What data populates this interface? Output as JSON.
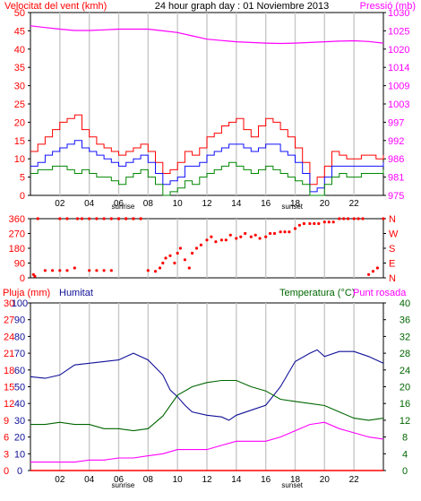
{
  "header": {
    "left": "Velocitat del vent (kmh)",
    "center": "24 hour graph day : 01 Noviembre 2013",
    "right": "Pressió (mb)"
  },
  "markers": {
    "sunrise": "sunrise",
    "sunset": "sunset"
  },
  "x_ticks": [
    "02",
    "04",
    "06",
    "08",
    "10",
    "12",
    "14",
    "16",
    "18",
    "20",
    "22"
  ],
  "colors": {
    "background": "#ffffff",
    "grid": "#c8c8c8",
    "wind_avg": "#1010ff",
    "wind_gust": "#ff0000",
    "wind_min": "#008800",
    "pressure": "#ff00ff",
    "direction": "#ff0000",
    "humidity": "#101099",
    "temperature": "#006600",
    "dewpoint": "#ff00ff",
    "rain": "#ff0000"
  },
  "chart_data": [
    {
      "type": "line",
      "title": "24 hour graph day : 01 Noviembre 2013",
      "left_axis_label": "Velocitat del vent (kmh)",
      "right_axis_label": "Pressió (mb)",
      "left_ticks": [
        "50",
        "45",
        "40",
        "35",
        "30",
        "25",
        "20",
        "15",
        "10",
        "5",
        "0"
      ],
      "right_ticks": [
        "1030",
        "1025",
        "1020",
        "1014",
        "1009",
        "1003",
        "997",
        "992",
        "986",
        "981",
        "975"
      ],
      "ylim_left": [
        0,
        50
      ],
      "ylim_right": [
        975,
        1030
      ],
      "xlim": [
        0,
        24
      ],
      "series": [
        {
          "key": "gust",
          "color_key": "wind_gust",
          "axis": "left",
          "x": [
            0,
            0.5,
            1,
            1.5,
            2,
            2.5,
            3,
            3.5,
            4,
            4.5,
            5,
            5.5,
            6,
            6.5,
            7,
            7.5,
            8,
            8.5,
            9,
            9.5,
            10,
            10.5,
            11,
            11.5,
            12,
            12.5,
            13,
            13.5,
            14,
            14.5,
            15,
            15.5,
            16,
            16.5,
            17,
            17.5,
            18,
            18.5,
            19,
            19.5,
            20,
            20.5,
            21,
            21.5,
            22,
            22.5,
            23,
            23.5,
            24
          ],
          "y": [
            12,
            14,
            16,
            18,
            20,
            21,
            22,
            18,
            16,
            14,
            13,
            12,
            11,
            12,
            13,
            14,
            12,
            9,
            6,
            7,
            9,
            12,
            11,
            13,
            16,
            17,
            19,
            20,
            21,
            18,
            16,
            19,
            21,
            20,
            18,
            16,
            13,
            9,
            3,
            5,
            8,
            12,
            11,
            10,
            10,
            11,
            11,
            10,
            11
          ]
        },
        {
          "key": "avg",
          "color_key": "wind_avg",
          "axis": "left",
          "x": [
            0,
            0.5,
            1,
            1.5,
            2,
            2.5,
            3,
            3.5,
            4,
            4.5,
            5,
            5.5,
            6,
            6.5,
            7,
            7.5,
            8,
            8.5,
            9,
            9.5,
            10,
            10.5,
            11,
            11.5,
            12,
            12.5,
            13,
            13.5,
            14,
            14.5,
            15,
            15.5,
            16,
            16.5,
            17,
            17.5,
            18,
            18.5,
            19,
            19.5,
            20,
            20.5,
            21,
            21.5,
            22,
            22.5,
            23,
            23.5,
            24
          ],
          "y": [
            8,
            9,
            11,
            12,
            13,
            14,
            15,
            13,
            12,
            11,
            10,
            9,
            8,
            9,
            10,
            11,
            9,
            6,
            3,
            4,
            5,
            8,
            8,
            9,
            11,
            12,
            13,
            14,
            14,
            13,
            12,
            13,
            14,
            14,
            12,
            11,
            9,
            6,
            1,
            2,
            5,
            8,
            8,
            8,
            8,
            8,
            8,
            8,
            9
          ]
        },
        {
          "key": "min",
          "color_key": "wind_min",
          "axis": "left",
          "x": [
            0,
            0.5,
            1,
            1.5,
            2,
            2.5,
            3,
            3.5,
            4,
            4.5,
            5,
            5.5,
            6,
            6.5,
            7,
            7.5,
            8,
            8.5,
            9,
            9.5,
            10,
            10.5,
            11,
            11.5,
            12,
            12.5,
            13,
            13.5,
            14,
            14.5,
            15,
            15.5,
            16,
            16.5,
            17,
            17.5,
            18,
            18.5,
            19,
            19.5,
            20,
            20.5,
            21,
            21.5,
            22,
            22.5,
            23,
            23.5,
            24
          ],
          "y": [
            6,
            7,
            7,
            8,
            8,
            7,
            6,
            7,
            6,
            5,
            5,
            4,
            3,
            5,
            6,
            7,
            5,
            3,
            0,
            1,
            2,
            4,
            3,
            5,
            6,
            7,
            8,
            9,
            8,
            7,
            6,
            7,
            8,
            7,
            6,
            5,
            4,
            3,
            0,
            0,
            3,
            5,
            6,
            5,
            5,
            6,
            6,
            6,
            7
          ]
        },
        {
          "key": "pressure",
          "color_key": "pressure",
          "axis": "right",
          "x": [
            0,
            1,
            2,
            3,
            4,
            5,
            6,
            7,
            8,
            9,
            10,
            11,
            12,
            13,
            14,
            15,
            16,
            17,
            18,
            19,
            20,
            21,
            22,
            23,
            24
          ],
          "y": [
            1026,
            1025.5,
            1025,
            1024.6,
            1024.6,
            1024.8,
            1025,
            1025,
            1025,
            1024.5,
            1024,
            1023,
            1022,
            1021.6,
            1021.2,
            1021,
            1020.8,
            1020.7,
            1020.8,
            1021,
            1021.2,
            1021.4,
            1021.5,
            1021.3,
            1020.8
          ]
        }
      ]
    },
    {
      "type": "scatter",
      "series_name": "Wind direction",
      "left_ticks": [
        "360",
        "270",
        "180",
        "90",
        "0"
      ],
      "right_ticks": [
        "N",
        "W",
        "S",
        "E",
        "N"
      ],
      "ylim": [
        0,
        360
      ],
      "xlim": [
        0,
        24
      ],
      "points": {
        "x": [
          0.2,
          0.3,
          0.5,
          1,
          1.5,
          2,
          2.5,
          3,
          3.2,
          3.5,
          4,
          4.5,
          5,
          5.5,
          6,
          6.5,
          7,
          7.5,
          2,
          2.5,
          4,
          4.5,
          5,
          5.5,
          6,
          6.5,
          7,
          7.5,
          8,
          8.5,
          8.8,
          9,
          9.2,
          9.5,
          9.8,
          10,
          10.2,
          10.5,
          10.8,
          11,
          11.3,
          11.6,
          12,
          12.3,
          12.6,
          13,
          13.3,
          13.6,
          14,
          14.3,
          14.6,
          15,
          15.3,
          15.6,
          16,
          16.3,
          16.6,
          17,
          17.3,
          17.6,
          18,
          18.3,
          18.6,
          19,
          19.3,
          19.6,
          20,
          20.3,
          20.6,
          21,
          21.3,
          21.6,
          22,
          22.3,
          22.6,
          23,
          23.3,
          23.6,
          24
        ],
        "y": [
          20,
          10,
          360,
          45,
          45,
          45,
          45,
          60,
          360,
          360,
          45,
          45,
          45,
          45,
          360,
          360,
          360,
          360,
          360,
          360,
          360,
          360,
          360,
          360,
          360,
          360,
          360,
          360,
          45,
          40,
          60,
          90,
          120,
          135,
          90,
          150,
          180,
          110,
          60,
          150,
          180,
          200,
          230,
          250,
          220,
          230,
          230,
          260,
          240,
          250,
          270,
          250,
          260,
          240,
          250,
          270,
          270,
          280,
          280,
          280,
          300,
          320,
          330,
          330,
          330,
          330,
          340,
          340,
          340,
          360,
          360,
          360,
          360,
          360,
          360,
          20,
          40,
          60,
          360
        ]
      }
    },
    {
      "type": "line",
      "left_axis_label": "Pluja (mm)",
      "left_axis_label_2": "Humitat",
      "right_axis_label": "Temperatura (°C)",
      "right_axis_label_2": "Punt rosada",
      "left_ticks_hum": [
        "100",
        "90",
        "80",
        "70",
        "60",
        "50",
        "40",
        "30",
        "20",
        "10",
        "0"
      ],
      "left_ticks_rain": [
        "30",
        "27",
        "24",
        "21",
        "18",
        "15",
        "12",
        "9",
        "6",
        "3",
        "0"
      ],
      "right_ticks": [
        "40",
        "36",
        "32",
        "28",
        "24",
        "20",
        "16",
        "12",
        "8",
        "4",
        "0"
      ],
      "ylim_humidity": [
        0,
        100
      ],
      "ylim_rain": [
        0,
        30
      ],
      "ylim_temperature": [
        0,
        40
      ],
      "xlim": [
        0,
        24
      ],
      "series": [
        {
          "key": "humidity",
          "color_key": "humidity",
          "axis": "humidity",
          "x": [
            0,
            1,
            2,
            3,
            4,
            5,
            6,
            7,
            8,
            9,
            9.5,
            10,
            10.5,
            11,
            12,
            13,
            13.5,
            14,
            15,
            16,
            17,
            18,
            19,
            19.5,
            20,
            21,
            22,
            23,
            24
          ],
          "y": [
            56,
            55,
            57,
            63,
            64,
            65,
            66,
            70,
            66,
            57,
            48,
            44,
            39,
            35,
            33,
            32,
            30,
            33,
            36,
            39,
            50,
            65,
            70,
            72,
            68,
            71,
            71,
            68,
            64
          ]
        },
        {
          "key": "temperature",
          "color_key": "temperature",
          "axis": "temperature",
          "x": [
            0,
            1,
            2,
            3,
            4,
            5,
            6,
            7,
            8,
            9,
            10,
            11,
            12,
            13,
            14,
            15,
            16,
            17,
            18,
            19,
            20,
            21,
            22,
            23,
            24
          ],
          "y": [
            11,
            11,
            11.5,
            11,
            11,
            10,
            10,
            9.5,
            10,
            13,
            18,
            20,
            21,
            21.5,
            21.5,
            20,
            19,
            17,
            16.5,
            16,
            15.5,
            14,
            12.5,
            12,
            12.5
          ]
        },
        {
          "key": "dewpoint",
          "color_key": "dewpoint",
          "axis": "temperature",
          "x": [
            0,
            1,
            2,
            3,
            4,
            5,
            6,
            7,
            8,
            9,
            10,
            11,
            12,
            13,
            14,
            15,
            16,
            17,
            18,
            19,
            20,
            21,
            22,
            23,
            24
          ],
          "y": [
            2,
            2,
            2,
            2,
            2.5,
            2.5,
            3,
            3,
            3.5,
            4,
            5,
            5,
            5,
            6,
            7,
            7,
            7,
            8,
            9.5,
            11,
            11.5,
            10,
            9,
            8,
            7.5
          ]
        },
        {
          "key": "rain",
          "color_key": "rain",
          "axis": "rain",
          "x": [
            0,
            24
          ],
          "y": [
            0,
            0
          ]
        }
      ]
    }
  ]
}
